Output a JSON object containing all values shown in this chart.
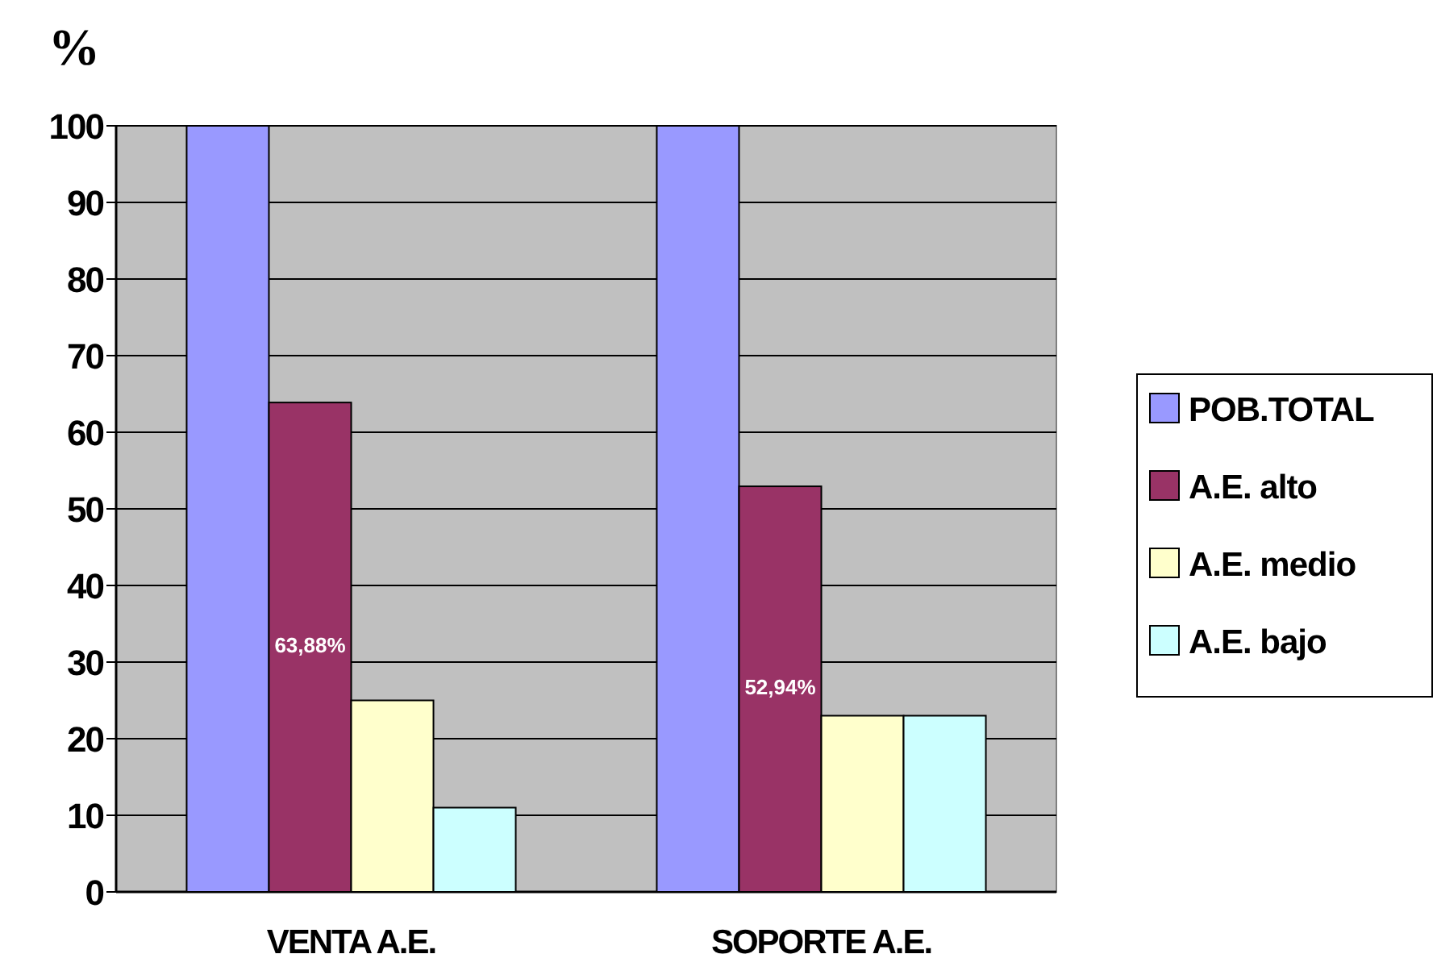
{
  "chart_data": {
    "type": "bar",
    "ylabel": "%",
    "categories": [
      "VENTA A.E.",
      "SOPORTE A.E."
    ],
    "series": [
      {
        "name": "POB.TOTAL",
        "color": "#9999ff",
        "values": [
          100,
          100
        ]
      },
      {
        "name": "A.E. alto",
        "color": "#993366",
        "values": [
          63.88,
          52.94
        ],
        "value_labels": [
          "63,88%",
          "52,94%"
        ]
      },
      {
        "name": "A.E. medio",
        "color": "#ffffcc",
        "values": [
          25,
          23
        ]
      },
      {
        "name": "A.E. bajo",
        "color": "#ccffff",
        "values": [
          11,
          23
        ]
      }
    ],
    "ylim": [
      0,
      100
    ],
    "yticks": [
      0,
      10,
      20,
      30,
      40,
      50,
      60,
      70,
      80,
      90,
      100
    ],
    "grid": "y",
    "legend": "right"
  }
}
